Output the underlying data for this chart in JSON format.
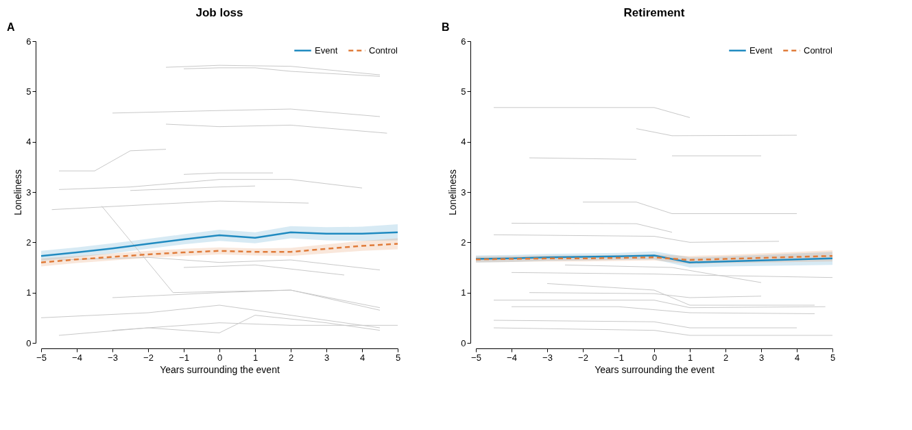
{
  "chart_data": [
    {
      "type": "line",
      "title": "Job loss",
      "annotations": [
        "A"
      ],
      "xlabel": "Years surrounding the event",
      "ylabel": "Loneliness",
      "xlim": [
        -5,
        5
      ],
      "xticks": [
        -5,
        -4,
        -3,
        -2,
        -1,
        0,
        1,
        2,
        3,
        4,
        5
      ],
      "ylim": [
        0,
        6
      ],
      "yticks": [
        0,
        1,
        2,
        3,
        4,
        5,
        6
      ],
      "grid": false,
      "legend": "top right",
      "series": [
        {
          "color": "#c8c8c8",
          "line_style": "solid",
          "x": [
            -1.5,
            0,
            2,
            4.5
          ],
          "values": [
            5.48,
            5.52,
            5.5,
            5.33
          ]
        },
        {
          "color": "#c8c8c8",
          "line_style": "solid",
          "x": [
            -1,
            0,
            1,
            2,
            4.5
          ],
          "values": [
            5.45,
            5.47,
            5.47,
            5.4,
            5.3
          ]
        },
        {
          "color": "#c8c8c8",
          "line_style": "solid",
          "x": [
            -3,
            0,
            2,
            4.5
          ],
          "values": [
            4.57,
            4.62,
            4.65,
            4.5
          ]
        },
        {
          "color": "#c8c8c8",
          "line_style": "solid",
          "x": [
            -1.5,
            0,
            2,
            4.7
          ],
          "values": [
            4.35,
            4.3,
            4.33,
            4.17
          ]
        },
        {
          "color": "#c8c8c8",
          "line_style": "solid",
          "x": [
            -4.5,
            -3.5,
            -2.5,
            -1.5
          ],
          "values": [
            3.42,
            3.42,
            3.82,
            3.85
          ]
        },
        {
          "color": "#c8c8c8",
          "line_style": "solid",
          "x": [
            -4.5,
            -2.5,
            0,
            2,
            4
          ],
          "values": [
            3.05,
            3.1,
            3.25,
            3.25,
            3.08
          ]
        },
        {
          "color": "#c8c8c8",
          "line_style": "solid",
          "x": [
            -1,
            0,
            1.5
          ],
          "values": [
            3.35,
            3.38,
            3.38
          ]
        },
        {
          "color": "#c8c8c8",
          "line_style": "solid",
          "x": [
            -2.5,
            0,
            1
          ],
          "values": [
            3.03,
            3.1,
            3.12
          ]
        },
        {
          "color": "#c8c8c8",
          "line_style": "solid",
          "x": [
            -4.7,
            -2,
            0,
            2.5
          ],
          "values": [
            2.65,
            2.75,
            2.82,
            2.78
          ]
        },
        {
          "color": "#c8c8c8",
          "line_style": "solid",
          "x": [
            -3.3,
            -1.3,
            2,
            4.5
          ],
          "values": [
            2.72,
            1.0,
            1.05,
            0.65
          ]
        },
        {
          "color": "#c8c8c8",
          "line_style": "solid",
          "x": [
            -4.5,
            -2,
            0,
            2,
            4.5
          ],
          "values": [
            1.65,
            1.7,
            1.6,
            1.65,
            1.45
          ]
        },
        {
          "color": "#c8c8c8",
          "line_style": "solid",
          "x": [
            -3,
            0,
            2,
            4.5
          ],
          "values": [
            0.9,
            1.0,
            1.05,
            0.7
          ]
        },
        {
          "color": "#c8c8c8",
          "line_style": "solid",
          "x": [
            -5,
            -2,
            0,
            2,
            4.5
          ],
          "values": [
            0.5,
            0.6,
            0.75,
            0.55,
            0.3
          ]
        },
        {
          "color": "#c8c8c8",
          "line_style": "solid",
          "x": [
            -4.5,
            -2,
            0,
            1,
            3,
            4.5
          ],
          "values": [
            0.15,
            0.3,
            0.2,
            0.55,
            0.4,
            0.25
          ]
        },
        {
          "color": "#c8c8c8",
          "line_style": "solid",
          "x": [
            -3,
            0,
            2,
            5
          ],
          "values": [
            0.25,
            0.4,
            0.35,
            0.35
          ]
        },
        {
          "color": "#c8c8c8",
          "line_style": "solid",
          "x": [
            -1,
            1,
            3.5
          ],
          "values": [
            1.5,
            1.55,
            1.35
          ]
        },
        {
          "name": "Event",
          "color": "#1f8ac0",
          "line_style": "solid",
          "x": [
            -5,
            -4,
            -3,
            -2,
            -1,
            0,
            1,
            2,
            3,
            4,
            5
          ],
          "values": [
            1.73,
            1.8,
            1.88,
            1.97,
            2.06,
            2.14,
            2.09,
            2.2,
            2.17,
            2.17,
            2.2
          ],
          "lower": [
            1.63,
            1.7,
            1.78,
            1.87,
            1.96,
            2.03,
            1.98,
            2.08,
            2.04,
            2.03,
            2.04
          ],
          "upper": [
            1.83,
            1.9,
            1.98,
            2.07,
            2.16,
            2.25,
            2.2,
            2.32,
            2.3,
            2.31,
            2.36
          ]
        },
        {
          "name": "Control",
          "color": "#e07b39",
          "line_style": "dashed",
          "x": [
            -5,
            -4,
            -3,
            -2,
            -1,
            0,
            1,
            2,
            3,
            4,
            5
          ],
          "values": [
            1.6,
            1.66,
            1.71,
            1.76,
            1.8,
            1.83,
            1.81,
            1.81,
            1.87,
            1.93,
            1.97
          ],
          "lower": [
            1.52,
            1.59,
            1.64,
            1.69,
            1.73,
            1.76,
            1.74,
            1.73,
            1.78,
            1.83,
            1.86
          ],
          "upper": [
            1.68,
            1.73,
            1.78,
            1.83,
            1.87,
            1.9,
            1.88,
            1.89,
            1.96,
            2.03,
            2.08
          ]
        }
      ]
    },
    {
      "type": "line",
      "title": "Retirement",
      "annotations": [
        "B"
      ],
      "xlabel": "Years surrounding the event",
      "ylabel": "Loneliness",
      "xlim": [
        -5,
        5
      ],
      "xticks": [
        -5,
        -4,
        -3,
        -2,
        -1,
        0,
        1,
        2,
        3,
        4,
        5
      ],
      "ylim": [
        0,
        6
      ],
      "yticks": [
        0,
        1,
        2,
        3,
        4,
        5,
        6
      ],
      "grid": false,
      "legend": "top right",
      "series": [
        {
          "color": "#c8c8c8",
          "line_style": "solid",
          "x": [
            -4.5,
            0,
            1
          ],
          "values": [
            4.68,
            4.68,
            4.48
          ]
        },
        {
          "color": "#c8c8c8",
          "line_style": "solid",
          "x": [
            -0.5,
            0.5,
            4
          ],
          "values": [
            4.26,
            4.12,
            4.13
          ]
        },
        {
          "color": "#c8c8c8",
          "line_style": "solid",
          "x": [
            -3.5,
            -0.5
          ],
          "values": [
            3.68,
            3.65
          ]
        },
        {
          "color": "#c8c8c8",
          "line_style": "solid",
          "x": [
            0.5,
            3
          ],
          "values": [
            3.72,
            3.72
          ]
        },
        {
          "color": "#c8c8c8",
          "line_style": "solid",
          "x": [
            -2,
            -0.5,
            0.5,
            4
          ],
          "values": [
            2.8,
            2.8,
            2.57,
            2.57
          ]
        },
        {
          "color": "#c8c8c8",
          "line_style": "solid",
          "x": [
            -4,
            -0.5,
            0.5
          ],
          "values": [
            2.38,
            2.37,
            2.2
          ]
        },
        {
          "color": "#c8c8c8",
          "line_style": "solid",
          "x": [
            -4.5,
            0,
            1,
            3.5
          ],
          "values": [
            2.15,
            2.12,
            2.0,
            2.02
          ]
        },
        {
          "color": "#c8c8c8",
          "line_style": "solid",
          "x": [
            -3.5,
            0,
            1,
            3
          ],
          "values": [
            1.0,
            0.98,
            0.9,
            0.93
          ]
        },
        {
          "color": "#c8c8c8",
          "line_style": "solid",
          "x": [
            -4,
            0,
            1,
            5
          ],
          "values": [
            1.4,
            1.37,
            1.35,
            1.3
          ]
        },
        {
          "color": "#c8c8c8",
          "line_style": "solid",
          "x": [
            -4.5,
            0,
            1,
            4.8
          ],
          "values": [
            0.85,
            0.85,
            0.7,
            0.72
          ]
        },
        {
          "color": "#c8c8c8",
          "line_style": "solid",
          "x": [
            -4,
            -1,
            1,
            4.5
          ],
          "values": [
            0.72,
            0.72,
            0.6,
            0.58
          ]
        },
        {
          "color": "#c8c8c8",
          "line_style": "solid",
          "x": [
            -4.5,
            0,
            1,
            4
          ],
          "values": [
            0.45,
            0.42,
            0.3,
            0.3
          ]
        },
        {
          "color": "#c8c8c8",
          "line_style": "solid",
          "x": [
            -4.5,
            0,
            1,
            5
          ],
          "values": [
            0.3,
            0.25,
            0.15,
            0.15
          ]
        },
        {
          "color": "#c8c8c8",
          "line_style": "solid",
          "x": [
            -3,
            0,
            1,
            4.5
          ],
          "values": [
            1.18,
            1.05,
            0.75,
            0.75
          ]
        },
        {
          "color": "#c8c8c8",
          "line_style": "solid",
          "x": [
            -2.5,
            0.5,
            3
          ],
          "values": [
            1.55,
            1.5,
            1.2
          ]
        },
        {
          "name": "Event",
          "color": "#1f8ac0",
          "line_style": "solid",
          "x": [
            -5,
            -4,
            -3,
            -2,
            -1,
            0,
            1,
            2,
            3,
            4,
            5
          ],
          "values": [
            1.67,
            1.68,
            1.7,
            1.71,
            1.72,
            1.74,
            1.6,
            1.62,
            1.64,
            1.66,
            1.68
          ],
          "lower": [
            1.6,
            1.61,
            1.63,
            1.64,
            1.65,
            1.66,
            1.5,
            1.52,
            1.53,
            1.54,
            1.55
          ],
          "upper": [
            1.74,
            1.75,
            1.77,
            1.78,
            1.79,
            1.82,
            1.7,
            1.72,
            1.75,
            1.78,
            1.81
          ]
        },
        {
          "name": "Control",
          "color": "#e07b39",
          "line_style": "dashed",
          "x": [
            -5,
            -4,
            -3,
            -2,
            -1,
            0,
            1,
            2,
            3,
            4,
            5
          ],
          "values": [
            1.66,
            1.67,
            1.68,
            1.68,
            1.69,
            1.7,
            1.65,
            1.67,
            1.69,
            1.71,
            1.73
          ],
          "lower": [
            1.6,
            1.61,
            1.62,
            1.62,
            1.63,
            1.64,
            1.57,
            1.59,
            1.6,
            1.61,
            1.62
          ],
          "upper": [
            1.72,
            1.73,
            1.74,
            1.74,
            1.75,
            1.76,
            1.73,
            1.75,
            1.78,
            1.81,
            1.84
          ]
        }
      ]
    }
  ]
}
